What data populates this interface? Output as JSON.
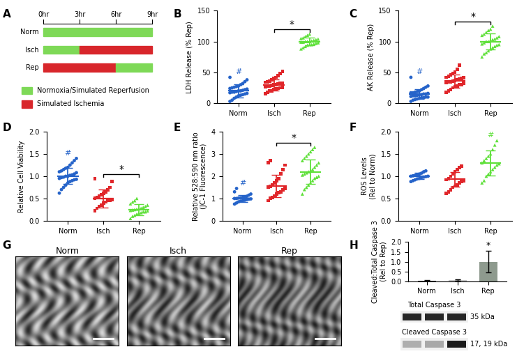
{
  "chart_data": [
    {
      "panel": "B",
      "type": "scatter",
      "y_label": "LDH Release (% Rep)",
      "ylim": [
        0,
        150
      ],
      "yticks": [
        0,
        50,
        100,
        150
      ],
      "series": [
        {
          "name": "Norm",
          "color": "#2563c9",
          "marker": "circle",
          "mean": 20,
          "sd": 11,
          "values": [
            5,
            8,
            10,
            12,
            13,
            14,
            15,
            16,
            17,
            18,
            18,
            19,
            20,
            20,
            21,
            22,
            23,
            24,
            25,
            26,
            28,
            30,
            32,
            35,
            38,
            42,
            3,
            27
          ]
        },
        {
          "name": "Isch",
          "color": "#e0262a",
          "marker": "square",
          "mean": 30,
          "sd": 9,
          "values": [
            15,
            18,
            20,
            22,
            23,
            24,
            25,
            26,
            27,
            28,
            29,
            30,
            30,
            31,
            32,
            33,
            34,
            35,
            36,
            38,
            40,
            42,
            45,
            48,
            52,
            20,
            28
          ]
        },
        {
          "name": "Rep",
          "color": "#5fe03a",
          "marker": "triangle",
          "mean": 100,
          "sd": 6,
          "values": [
            88,
            90,
            92,
            94,
            95,
            96,
            97,
            98,
            99,
            100,
            100,
            101,
            102,
            103,
            104,
            105,
            106,
            108,
            110,
            112,
            95,
            99,
            100
          ]
        }
      ],
      "annotations": [
        {
          "text": "#",
          "category": "Norm"
        },
        {
          "text": "*",
          "between": [
            "Isch",
            "Rep"
          ]
        }
      ]
    },
    {
      "panel": "C",
      "type": "scatter",
      "y_label": "AK Release (% Rep)",
      "ylim": [
        0,
        150
      ],
      "yticks": [
        0,
        50,
        100,
        150
      ],
      "series": [
        {
          "name": "Norm",
          "color": "#2563c9",
          "marker": "circle",
          "mean": 15,
          "sd": 8,
          "values": [
            3,
            5,
            6,
            7,
            8,
            9,
            10,
            11,
            12,
            12,
            13,
            14,
            15,
            15,
            16,
            17,
            18,
            19,
            20,
            22,
            24,
            26,
            28,
            42,
            10,
            14,
            17,
            9
          ]
        },
        {
          "name": "Isch",
          "color": "#e0262a",
          "marker": "square",
          "mean": 36,
          "sd": 11,
          "values": [
            18,
            20,
            22,
            25,
            27,
            28,
            30,
            32,
            33,
            34,
            35,
            36,
            37,
            38,
            40,
            42,
            44,
            46,
            48,
            50,
            55,
            62,
            30,
            39,
            41
          ]
        },
        {
          "name": "Rep",
          "color": "#5fe03a",
          "marker": "triangle",
          "mean": 100,
          "sd": 13,
          "values": [
            75,
            80,
            82,
            85,
            88,
            90,
            92,
            94,
            96,
            98,
            100,
            100,
            102,
            104,
            106,
            108,
            110,
            112,
            115,
            118,
            120,
            125,
            95,
            103
          ]
        }
      ],
      "annotations": [
        {
          "text": "#",
          "category": "Norm"
        },
        {
          "text": "*",
          "between": [
            "Isch",
            "Rep"
          ]
        }
      ]
    },
    {
      "panel": "D",
      "type": "scatter",
      "y_label": "Relative Cell Viability",
      "ylim": [
        0.0,
        2.0
      ],
      "yticks": [
        0.0,
        0.5,
        1.0,
        1.5,
        2.0
      ],
      "series": [
        {
          "name": "Norm",
          "color": "#2563c9",
          "marker": "circle",
          "mean": 1.0,
          "sd": 0.18,
          "values": [
            0.62,
            0.7,
            0.75,
            0.8,
            0.85,
            0.88,
            0.9,
            0.92,
            0.95,
            0.97,
            1.0,
            1.0,
            1.02,
            1.05,
            1.08,
            1.1,
            1.12,
            1.15,
            1.18,
            1.2,
            1.25,
            1.3,
            1.35,
            1.4,
            0.98,
            1.03,
            0.93
          ]
        },
        {
          "name": "Isch",
          "color": "#e0262a",
          "marker": "square",
          "mean": 0.5,
          "sd": 0.2,
          "values": [
            0.22,
            0.28,
            0.32,
            0.35,
            0.4,
            0.42,
            0.45,
            0.48,
            0.5,
            0.52,
            0.55,
            0.58,
            0.62,
            0.65,
            0.7,
            0.75,
            0.88,
            0.95,
            0.45
          ]
        },
        {
          "name": "Rep",
          "color": "#5fe03a",
          "marker": "triangle",
          "mean": 0.25,
          "sd": 0.12,
          "values": [
            0.05,
            0.1,
            0.12,
            0.15,
            0.17,
            0.18,
            0.2,
            0.22,
            0.23,
            0.25,
            0.26,
            0.28,
            0.3,
            0.32,
            0.35,
            0.38,
            0.42,
            0.45,
            0.5,
            0.2,
            0.24,
            0.27
          ]
        }
      ],
      "annotations": [
        {
          "text": "#",
          "category": "Norm"
        },
        {
          "text": "*",
          "between": [
            "Isch",
            "Rep"
          ]
        }
      ]
    },
    {
      "panel": "E",
      "type": "scatter",
      "y_label": "Relative 528:590 nm ratio\n(JC-1 Fluorescence)",
      "ylim": [
        0,
        4
      ],
      "yticks": [
        0,
        1,
        2,
        3,
        4
      ],
      "series": [
        {
          "name": "Norm",
          "color": "#2563c9",
          "marker": "circle",
          "mean": 1.0,
          "sd": 0.15,
          "values": [
            0.75,
            0.8,
            0.85,
            0.88,
            0.9,
            0.92,
            0.95,
            0.97,
            1.0,
            1.0,
            1.02,
            1.05,
            1.08,
            1.1,
            1.15,
            1.2,
            1.3,
            1.45,
            0.98,
            1.03
          ]
        },
        {
          "name": "Isch",
          "color": "#e0262a",
          "marker": "square",
          "mean": 1.55,
          "sd": 0.5,
          "values": [
            0.9,
            1.0,
            1.05,
            1.1,
            1.2,
            1.25,
            1.3,
            1.4,
            1.45,
            1.5,
            1.55,
            1.6,
            1.7,
            1.8,
            1.9,
            2.1,
            2.3,
            2.5,
            2.6,
            2.7
          ]
        },
        {
          "name": "Rep",
          "color": "#5fe03a",
          "marker": "triangle",
          "mean": 2.2,
          "sd": 0.55,
          "values": [
            1.2,
            1.4,
            1.5,
            1.6,
            1.7,
            1.8,
            1.9,
            2.0,
            2.05,
            2.1,
            2.2,
            2.25,
            2.3,
            2.4,
            2.5,
            2.6,
            2.7,
            2.8,
            2.9,
            3.0,
            3.1,
            3.2,
            3.3,
            1.95,
            2.15
          ]
        }
      ],
      "annotations": [
        {
          "text": "#",
          "category": "Norm"
        },
        {
          "text": "*",
          "between": [
            "Isch",
            "Rep"
          ]
        }
      ]
    },
    {
      "panel": "F",
      "type": "scatter",
      "y_label": "ROS Levels\n(Rel to Norm)",
      "ylim": [
        0.0,
        2.0
      ],
      "yticks": [
        0.0,
        0.5,
        1.0,
        1.5,
        2.0
      ],
      "series": [
        {
          "name": "Norm",
          "color": "#2563c9",
          "marker": "circle",
          "mean": 1.0,
          "sd": 0.07,
          "values": [
            0.88,
            0.9,
            0.92,
            0.94,
            0.95,
            0.97,
            0.98,
            1.0,
            1.0,
            1.01,
            1.02,
            1.04,
            1.05,
            1.07,
            1.1,
            1.12,
            0.99
          ]
        },
        {
          "name": "Isch",
          "color": "#e0262a",
          "marker": "square",
          "mean": 0.93,
          "sd": 0.17,
          "values": [
            0.62,
            0.65,
            0.7,
            0.75,
            0.8,
            0.85,
            0.88,
            0.9,
            0.95,
            1.0,
            1.05,
            1.1,
            1.15,
            1.2,
            1.22,
            0.92,
            0.78
          ]
        },
        {
          "name": "Rep",
          "color": "#5fe03a",
          "marker": "triangle",
          "mean": 1.3,
          "sd": 0.28,
          "values": [
            0.85,
            0.9,
            1.0,
            1.05,
            1.1,
            1.15,
            1.2,
            1.25,
            1.3,
            1.35,
            1.4,
            1.5,
            1.6,
            1.7,
            1.8,
            1.45,
            1.28
          ]
        }
      ],
      "annotations": [
        {
          "text": "#",
          "category": "Rep"
        }
      ]
    },
    {
      "panel": "H",
      "type": "bar",
      "y_label": "Cleaved:Total Caspase 3\n(Rel to Rep)",
      "categories": [
        "Norm",
        "Isch",
        "Rep"
      ],
      "values": [
        0.03,
        0.07,
        1.0
      ],
      "errors": [
        0.03,
        0.03,
        0.55
      ],
      "colors": [
        "#2b2b2b",
        "#c8c8c8",
        "#8e9a8e"
      ],
      "ylim": [
        0.0,
        2.0
      ],
      "yticks": [
        0.0,
        0.5,
        1.0,
        1.5,
        2.0
      ],
      "annotations": [
        {
          "text": "*",
          "category": "Rep"
        }
      ]
    }
  ],
  "timeline": {
    "panel": "A",
    "ticks": [
      {
        "value": 0,
        "label": "0hr"
      },
      {
        "value": 3,
        "label": "3hr"
      },
      {
        "value": 6,
        "label": "6hr"
      },
      {
        "value": 9,
        "label": "9hr"
      }
    ],
    "phases": [
      {
        "name": "Normoxia/Simulated Reperfusion",
        "color": "#7ed957"
      },
      {
        "name": "Simulated Ischemia",
        "color": "#d8262b"
      }
    ],
    "rows": [
      {
        "name": "Norm",
        "segments": [
          {
            "start": 0,
            "end": 9,
            "phase": "Normoxia/Simulated Reperfusion"
          }
        ]
      },
      {
        "name": "Isch",
        "segments": [
          {
            "start": 0,
            "end": 3,
            "phase": "Normoxia/Simulated Reperfusion"
          },
          {
            "start": 3,
            "end": 9,
            "phase": "Simulated Ischemia"
          }
        ]
      },
      {
        "name": "Rep",
        "segments": [
          {
            "start": 0,
            "end": 6,
            "phase": "Simulated Ischemia"
          },
          {
            "start": 6,
            "end": 9,
            "phase": "Normoxia/Simulated Reperfusion"
          }
        ]
      }
    ]
  },
  "images": {
    "panel": "G",
    "titles": [
      "Norm",
      "Isch",
      "Rep"
    ]
  },
  "blot": {
    "rows": [
      {
        "name": "Total Caspase 3",
        "size": "35 kDa"
      },
      {
        "name": "Cleaved Caspase 3",
        "size": "17, 19 kDa"
      }
    ]
  }
}
